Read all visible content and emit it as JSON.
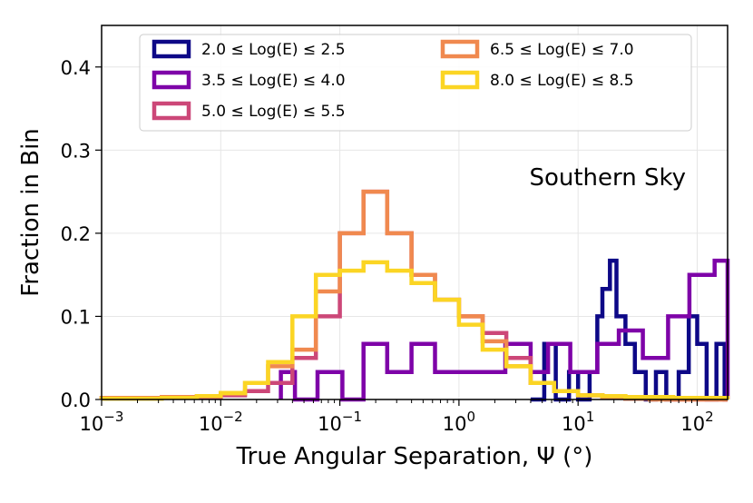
{
  "chart_data": {
    "type": "histogram",
    "title": "",
    "xlabel": "True Angular Separation, Ψ (°)",
    "ylabel": "Fraction in Bin",
    "xscale": "log",
    "xlim": [
      0.001,
      180
    ],
    "ylim": [
      0.0,
      0.45
    ],
    "grid": true,
    "annotation": "Southern Sky",
    "x_ticks": [
      {
        "value": 0.001,
        "base": "10",
        "exp": "−3"
      },
      {
        "value": 0.01,
        "base": "10",
        "exp": "−2"
      },
      {
        "value": 0.1,
        "base": "10",
        "exp": "−1"
      },
      {
        "value": 1,
        "base": "10",
        "exp": "0"
      },
      {
        "value": 10,
        "base": "10",
        "exp": "1"
      },
      {
        "value": 100,
        "base": "10",
        "exp": "2"
      }
    ],
    "y_ticks": [
      {
        "value": 0.0,
        "label": "0.0"
      },
      {
        "value": 0.1,
        "label": "0.1"
      },
      {
        "value": 0.2,
        "label": "0.2"
      },
      {
        "value": 0.3,
        "label": "0.3"
      },
      {
        "value": 0.4,
        "label": "0.4"
      }
    ],
    "legend": {
      "location": "top",
      "columns": 2
    },
    "series": [
      {
        "name": "2.0 ≤ Log(E) ≤ 2.5",
        "color": "#0d0887",
        "edges": [
          4,
          5.2,
          6.5,
          8.4,
          10,
          12.5,
          14.5,
          16,
          18.5,
          21,
          25,
          30,
          37,
          45,
          55,
          70,
          85,
          100,
          120,
          145,
          170,
          180
        ],
        "values": [
          0.0,
          0.067,
          0.0,
          0.033,
          0.0,
          0.033,
          0.1,
          0.133,
          0.167,
          0.1,
          0.067,
          0.033,
          0.0,
          0.033,
          0.0,
          0.033,
          0.1,
          0.067,
          0.0,
          0.067,
          0.0
        ]
      },
      {
        "name": "3.5 ≤ Log(E) ≤ 4.0",
        "color": "#7e03a8",
        "edges": [
          0.032,
          0.042,
          0.065,
          0.105,
          0.158,
          0.25,
          0.4,
          0.63,
          1.0,
          1.55,
          2.45,
          4.0,
          5.6,
          8.6,
          14.5,
          22,
          35,
          57,
          86,
          140,
          180
        ],
        "values": [
          0.033,
          0.0,
          0.033,
          0.0,
          0.067,
          0.033,
          0.067,
          0.033,
          0.033,
          0.033,
          0.067,
          0.033,
          0.067,
          0.033,
          0.067,
          0.083,
          0.05,
          0.1,
          0.15,
          0.167
        ]
      },
      {
        "name": "5.0 ≤ Log(E) ≤ 5.5",
        "color": "#cc4778",
        "edges": [
          0.001,
          0.0032,
          0.0063,
          0.01,
          0.016,
          0.025,
          0.04,
          0.063,
          0.1,
          0.158,
          0.25,
          0.4,
          0.63,
          1.0,
          1.58,
          2.5,
          4.0,
          6.3,
          10,
          16,
          25,
          40,
          63,
          100,
          158,
          180
        ],
        "values": [
          0.002,
          0.002,
          0.003,
          0.005,
          0.01,
          0.02,
          0.05,
          0.1,
          0.2,
          0.25,
          0.2,
          0.15,
          0.12,
          0.1,
          0.08,
          0.05,
          0.02,
          0.01,
          0.005,
          0.002,
          0.001,
          0.001,
          0.0,
          0.0,
          0.0
        ]
      },
      {
        "name": "6.5 ≤ Log(E) ≤ 7.0",
        "color": "#f0894f",
        "edges": [
          0.001,
          0.0032,
          0.0063,
          0.01,
          0.016,
          0.025,
          0.04,
          0.063,
          0.1,
          0.158,
          0.25,
          0.4,
          0.63,
          1.0,
          1.58,
          2.5,
          4.0,
          6.3,
          10,
          16,
          25,
          40,
          63,
          100,
          158,
          180
        ],
        "values": [
          0.002,
          0.003,
          0.004,
          0.007,
          0.02,
          0.04,
          0.06,
          0.13,
          0.2,
          0.25,
          0.2,
          0.15,
          0.12,
          0.1,
          0.07,
          0.04,
          0.02,
          0.01,
          0.005,
          0.002,
          0.001,
          0.0,
          0.0,
          0.0,
          0.0
        ]
      },
      {
        "name": "8.0 ≤ Log(E) ≤ 8.5",
        "color": "#fbd524",
        "edges": [
          0.001,
          0.0032,
          0.0063,
          0.01,
          0.016,
          0.025,
          0.04,
          0.063,
          0.1,
          0.158,
          0.25,
          0.4,
          0.63,
          1.0,
          1.58,
          2.5,
          4.0,
          6.3,
          10,
          16,
          25,
          40,
          63,
          100,
          158,
          180
        ],
        "values": [
          0.001,
          0.002,
          0.004,
          0.008,
          0.02,
          0.045,
          0.1,
          0.15,
          0.155,
          0.165,
          0.155,
          0.14,
          0.12,
          0.09,
          0.06,
          0.04,
          0.02,
          0.01,
          0.005,
          0.004,
          0.003,
          0.003,
          0.002,
          0.002,
          0.002
        ]
      }
    ]
  }
}
